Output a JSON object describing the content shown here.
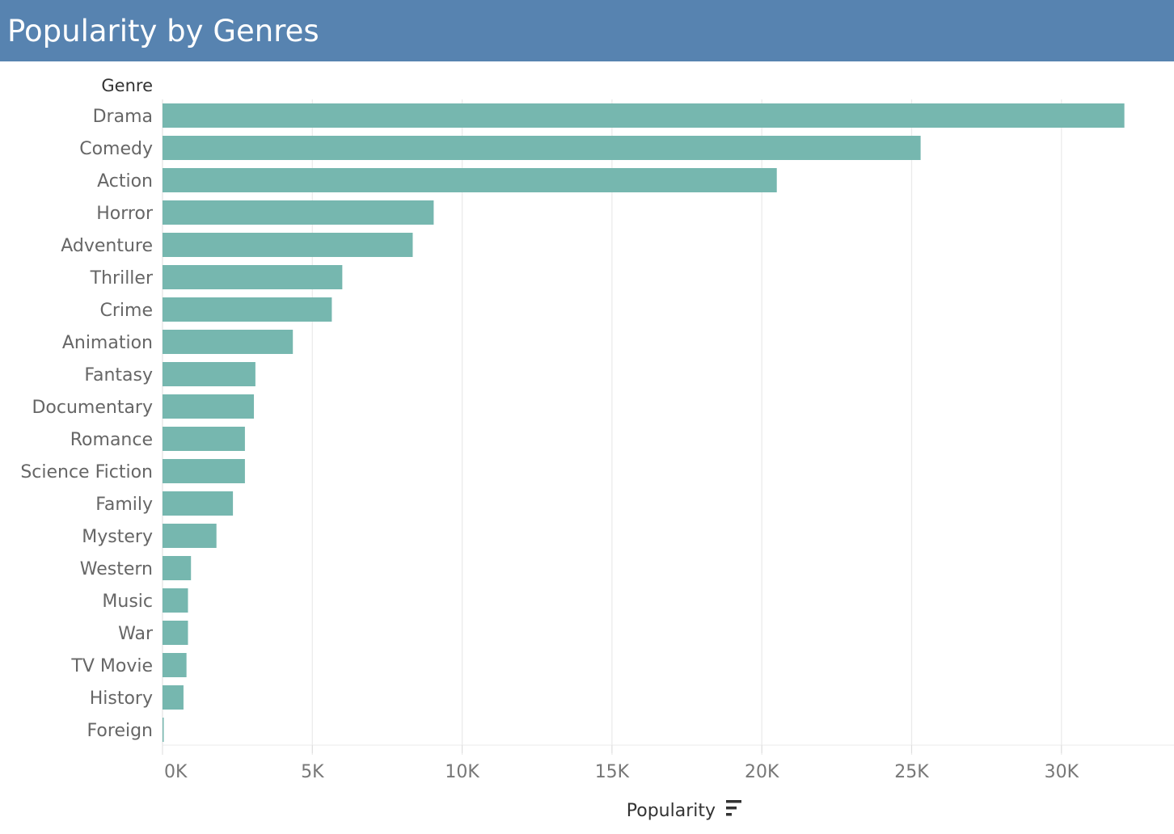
{
  "header": {
    "title": "Popularity by Genres"
  },
  "colors": {
    "title_bar": "#5783b0",
    "bar": "#76b7af",
    "grid": "#ebebeb"
  },
  "icons": {
    "sort": "sort-descending-icon"
  },
  "chart_data": {
    "type": "bar",
    "orientation": "horizontal",
    "title": "Popularity by Genres",
    "row_header": "Genre",
    "xlabel": "Popularity",
    "xlim": [
      0,
      33500
    ],
    "xticks": [
      0,
      5000,
      10000,
      15000,
      20000,
      25000,
      30000
    ],
    "xtick_labels": [
      "0K",
      "5K",
      "10K",
      "15K",
      "20K",
      "25K",
      "30K"
    ],
    "grid": true,
    "categories": [
      "Drama",
      "Comedy",
      "Action",
      "Horror",
      "Adventure",
      "Thriller",
      "Crime",
      "Animation",
      "Fantasy",
      "Documentary",
      "Romance",
      "Science Fiction",
      "Family",
      "Mystery",
      "Western",
      "Music",
      "War",
      "TV Movie",
      "History",
      "Foreign"
    ],
    "values": [
      32100,
      25300,
      20500,
      9050,
      8350,
      6000,
      5650,
      4350,
      3100,
      3050,
      2750,
      2750,
      2350,
      1800,
      950,
      850,
      850,
      800,
      700,
      30
    ]
  }
}
